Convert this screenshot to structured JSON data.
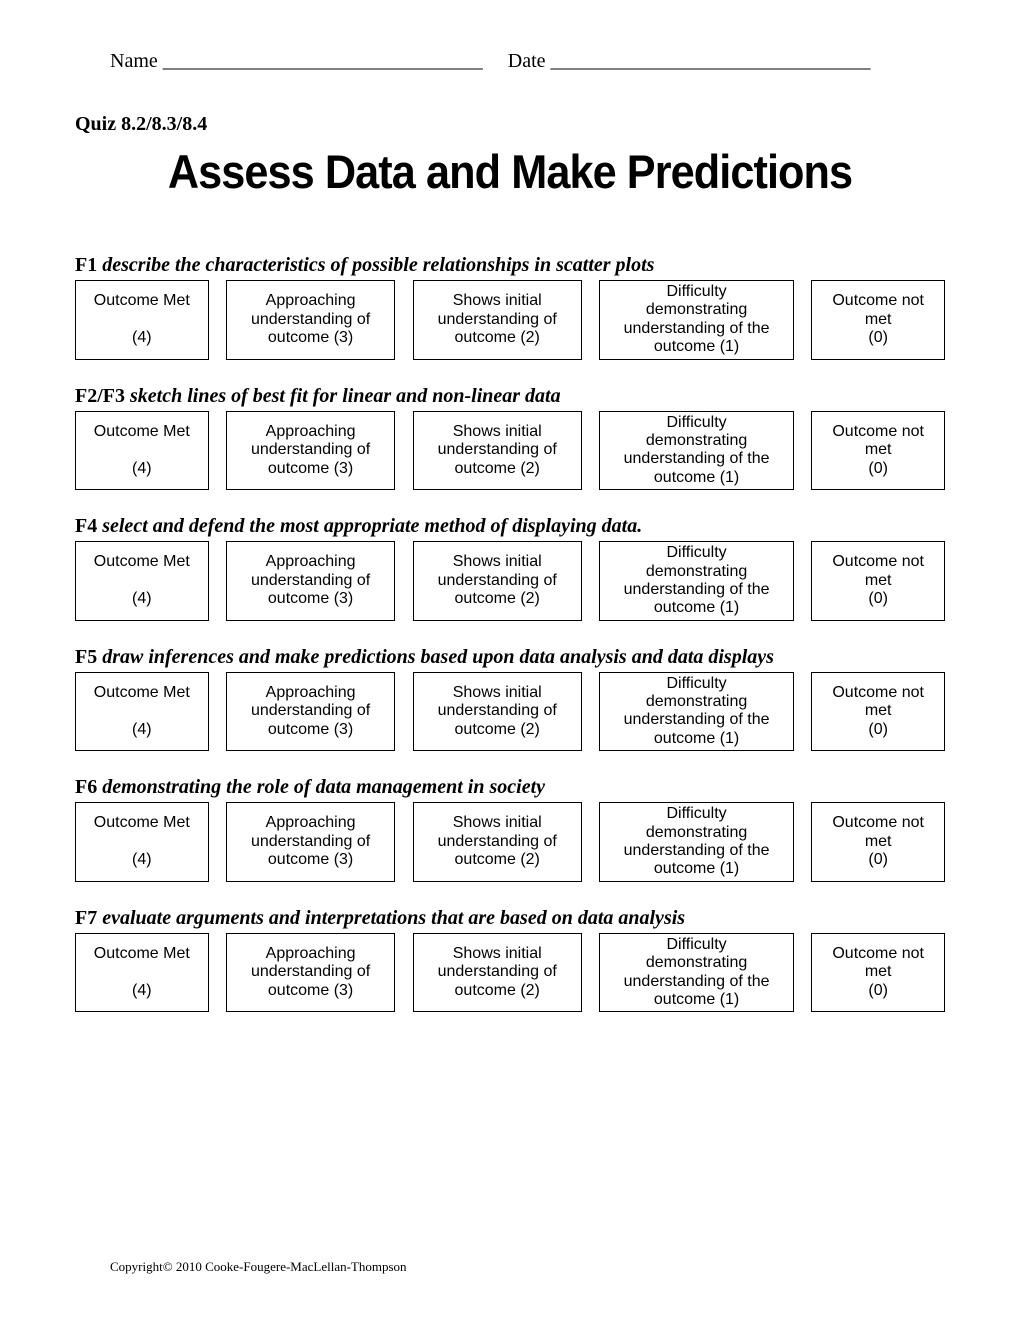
{
  "header": {
    "name_label": "Name",
    "name_line": "________________________________",
    "date_label": "Date",
    "date_line": "________________________________"
  },
  "quiz_label": "Quiz  8.2/8.3/8.4",
  "title": "Assess Data and Make Predictions",
  "rubric_levels": {
    "level4": {
      "line1": "Outcome Met",
      "line2": "",
      "line3": "(4)"
    },
    "level3": {
      "line1": "Approaching",
      "line2": "understanding of",
      "line3": "outcome (3)"
    },
    "level2": {
      "line1": "Shows initial",
      "line2": "understanding of",
      "line3": "outcome (2)"
    },
    "level1": {
      "line1": "Difficulty",
      "line2": "demonstrating",
      "line3": "understanding of the",
      "line4": "outcome (1)"
    },
    "level0": {
      "line1": "Outcome not",
      "line2": "met",
      "line3": "(0)"
    }
  },
  "outcomes": [
    {
      "code": "F1",
      "desc": "describe the characteristics of possible relationships in scatter plots"
    },
    {
      "code": "F2/F3",
      "desc": "sketch lines of best fit for linear and non-linear data"
    },
    {
      "code": "F4",
      "desc": "select and defend the most appropriate method of displaying data."
    },
    {
      "code": "F5 ",
      "desc": " draw inferences and make predictions based upon data analysis and data displays"
    },
    {
      "code": "F6",
      "desc": "demonstrating the role of data management in society"
    },
    {
      "code": "F7",
      "desc": "evaluate arguments and interpretations that are based on data analysis"
    }
  ],
  "footer": "Copyright© 2010 Cooke-Fougere-MacLellan-Thompson"
}
